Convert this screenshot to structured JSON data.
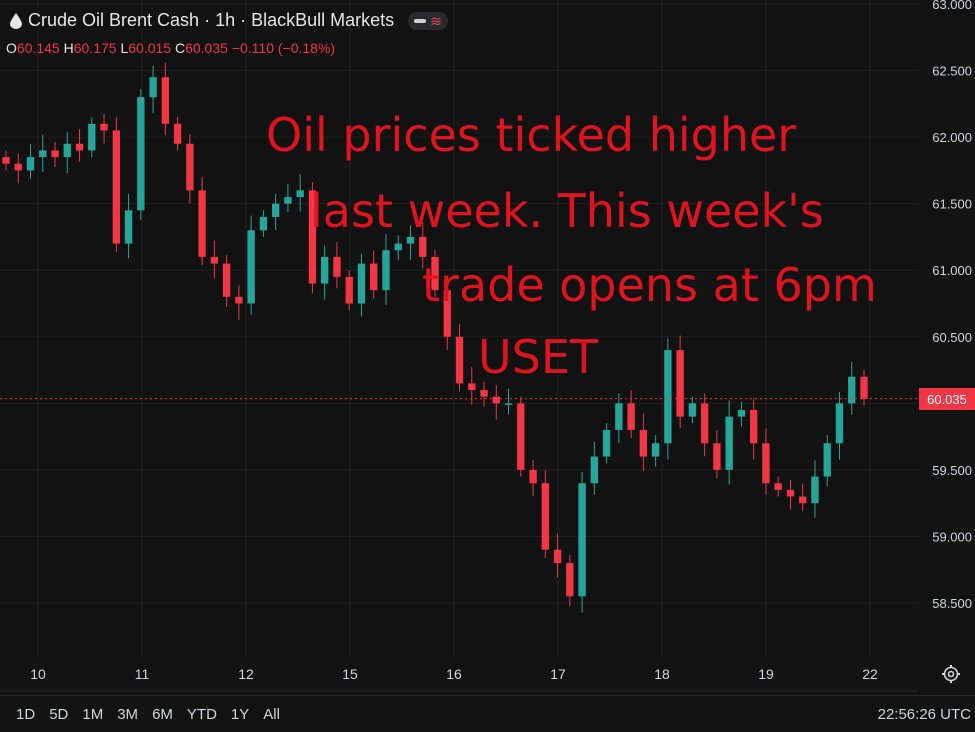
{
  "header": {
    "symbol_title": "Crude Oil Brent Cash · 1h · BlackBull Markets",
    "ohlc": {
      "o_label": "O",
      "o_value": "60.145",
      "h_label": "H",
      "h_value": "60.175",
      "l_label": "L",
      "l_value": "60.015",
      "c_label": "C",
      "c_value": "60.035",
      "change": "−0.110 (−0.18%)"
    }
  },
  "annotation": {
    "lines": [
      "Oil prices ticked higher",
      "last week. This week's",
      "trade opens at 6pm",
      "USET"
    ]
  },
  "price_tag": "60.035",
  "bottom_bar": {
    "timeframes": [
      "1D",
      "5D",
      "1M",
      "3M",
      "6M",
      "YTD",
      "1Y",
      "All"
    ],
    "clock": "22:56:26 UTC"
  },
  "colors": {
    "background": "#121212",
    "up": "#26a69a",
    "down": "#f23645",
    "annotation": "#e0141e",
    "grid": "#1e1e1e"
  },
  "icons": {
    "title_icon": "droplet-icon",
    "settings": "gear-icon"
  },
  "chart_data": {
    "type": "candlestick",
    "ylim": [
      58.2,
      63.0
    ],
    "yticks": [
      "63.000",
      "62.500",
      "62.000",
      "61.500",
      "61.000",
      "60.500",
      "60.000",
      "59.500",
      "59.000",
      "58.500"
    ],
    "xticks": [
      "10",
      "11",
      "12",
      "15",
      "16",
      "17",
      "18",
      "19",
      "22"
    ],
    "last_price": 60.035,
    "close": [
      61.8,
      61.75,
      61.85,
      61.9,
      61.85,
      61.95,
      61.9,
      62.1,
      62.05,
      61.2,
      61.45,
      62.3,
      62.45,
      62.1,
      61.95,
      61.6,
      61.1,
      61.05,
      60.8,
      60.75,
      61.3,
      61.4,
      61.5,
      61.55,
      61.6,
      60.9,
      61.1,
      60.95,
      60.75,
      61.05,
      60.85,
      61.15,
      61.2,
      61.25,
      61.1,
      60.85,
      60.5,
      60.15,
      60.1,
      60.05,
      60.0,
      60.0,
      59.5,
      59.4,
      58.9,
      58.8,
      58.55,
      59.4,
      59.6,
      59.8,
      60.0,
      59.8,
      59.6,
      59.7,
      60.4,
      59.9,
      60.0,
      59.7,
      59.5,
      59.9,
      59.95,
      59.7,
      59.4,
      59.35,
      59.3,
      59.25,
      59.45,
      59.7,
      60.0,
      60.2,
      60.035
    ]
  }
}
